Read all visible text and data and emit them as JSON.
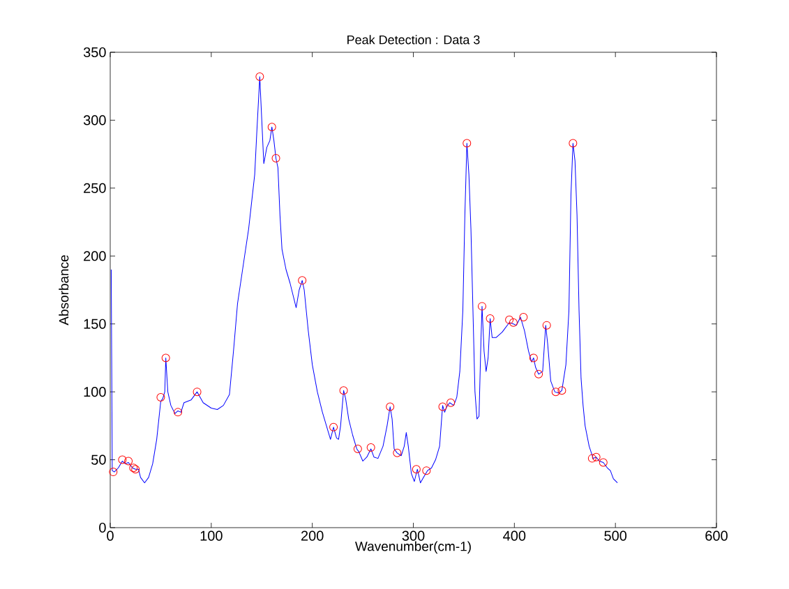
{
  "chart_data": {
    "type": "line",
    "title": "Peak Detection : Data 3",
    "xlabel": "Wavenumber(cm-1)",
    "ylabel": "Absorbance",
    "xlim": [
      0,
      600
    ],
    "ylim": [
      0,
      350
    ],
    "xticks": [
      0,
      100,
      200,
      300,
      400,
      500,
      600
    ],
    "yticks": [
      0,
      50,
      100,
      150,
      200,
      250,
      300,
      350
    ],
    "grid": false,
    "series": [
      {
        "color": "#0000ff",
        "marker": "none",
        "x": [
          1,
          2,
          4,
          8,
          12,
          15,
          18,
          22,
          25,
          28,
          30,
          34,
          38,
          42,
          46,
          50,
          52,
          54,
          55,
          57,
          60,
          64,
          67,
          70,
          73,
          80,
          86,
          92,
          100,
          106,
          112,
          118,
          122,
          126,
          130,
          134,
          137,
          140,
          143,
          145,
          148,
          150,
          152,
          155,
          158,
          160,
          162,
          164,
          166,
          168,
          170,
          174,
          178,
          182,
          184,
          187,
          190,
          192,
          196,
          200,
          205,
          210,
          214,
          218,
          221,
          224,
          226,
          228,
          231,
          233,
          236,
          240,
          244,
          246,
          250,
          254,
          258,
          261,
          265,
          270,
          274,
          277,
          279,
          281,
          284,
          288,
          291,
          293,
          295,
          298,
          301,
          304,
          307,
          310,
          314,
          318,
          322,
          326,
          329,
          331,
          333,
          336,
          340,
          343,
          346,
          349,
          351,
          353,
          355,
          357,
          359,
          361,
          363,
          365,
          367,
          368,
          370,
          372,
          374,
          376,
          378,
          382,
          388,
          395,
          399,
          402,
          406,
          410,
          414,
          417,
          419,
          421,
          424,
          428,
          431,
          433,
          436,
          440,
          444,
          447,
          451,
          454,
          456,
          458,
          460,
          462,
          464,
          466,
          468,
          470,
          474,
          478,
          481,
          484,
          488,
          492,
          495,
          498,
          502
        ],
        "values": [
          190,
          42,
          41,
          44,
          49,
          47,
          48,
          44,
          43,
          43,
          37,
          33,
          37,
          47,
          65,
          93,
          95,
          100,
          125,
          100,
          90,
          84,
          86,
          85,
          92,
          94,
          100,
          92,
          88,
          87,
          90,
          98,
          130,
          165,
          185,
          205,
          220,
          240,
          260,
          290,
          332,
          300,
          268,
          280,
          285,
          295,
          285,
          272,
          265,
          230,
          205,
          190,
          180,
          168,
          162,
          175,
          182,
          175,
          145,
          120,
          100,
          85,
          75,
          65,
          74,
          66,
          65,
          75,
          101,
          95,
          80,
          68,
          58,
          56,
          49,
          52,
          58,
          52,
          51,
          60,
          75,
          89,
          80,
          58,
          55,
          53,
          60,
          70,
          60,
          40,
          34,
          43,
          33,
          37,
          42,
          44,
          50,
          60,
          90,
          85,
          89,
          92,
          90,
          96,
          115,
          160,
          230,
          283,
          260,
          220,
          160,
          100,
          80,
          82,
          140,
          163,
          130,
          115,
          125,
          154,
          140,
          140,
          144,
          151,
          150,
          149,
          155,
          145,
          130,
          122,
          125,
          118,
          113,
          115,
          149,
          135,
          108,
          100,
          99,
          101,
          120,
          160,
          245,
          283,
          270,
          230,
          160,
          110,
          90,
          75,
          60,
          51,
          52,
          49,
          48,
          44,
          42,
          36,
          33
        ]
      },
      {
        "type": "scatter",
        "color": "#ff0000",
        "marker": "circle",
        "x": [
          3,
          12,
          18,
          23,
          25,
          50,
          55,
          67,
          86,
          148,
          160,
          164,
          190,
          221,
          231,
          245,
          258,
          277,
          284,
          303,
          313,
          329,
          337,
          353,
          368,
          376,
          395,
          399,
          409,
          419,
          424,
          432,
          441,
          447,
          458,
          477,
          481,
          488
        ],
        "values": [
          41,
          50,
          49,
          44,
          43,
          96,
          125,
          85,
          100,
          332,
          295,
          272,
          182,
          74,
          101,
          58,
          59,
          89,
          55,
          43,
          42,
          89,
          92,
          283,
          163,
          154,
          153,
          151,
          155,
          125,
          113,
          149,
          100,
          101,
          283,
          51,
          52,
          48
        ]
      }
    ]
  }
}
